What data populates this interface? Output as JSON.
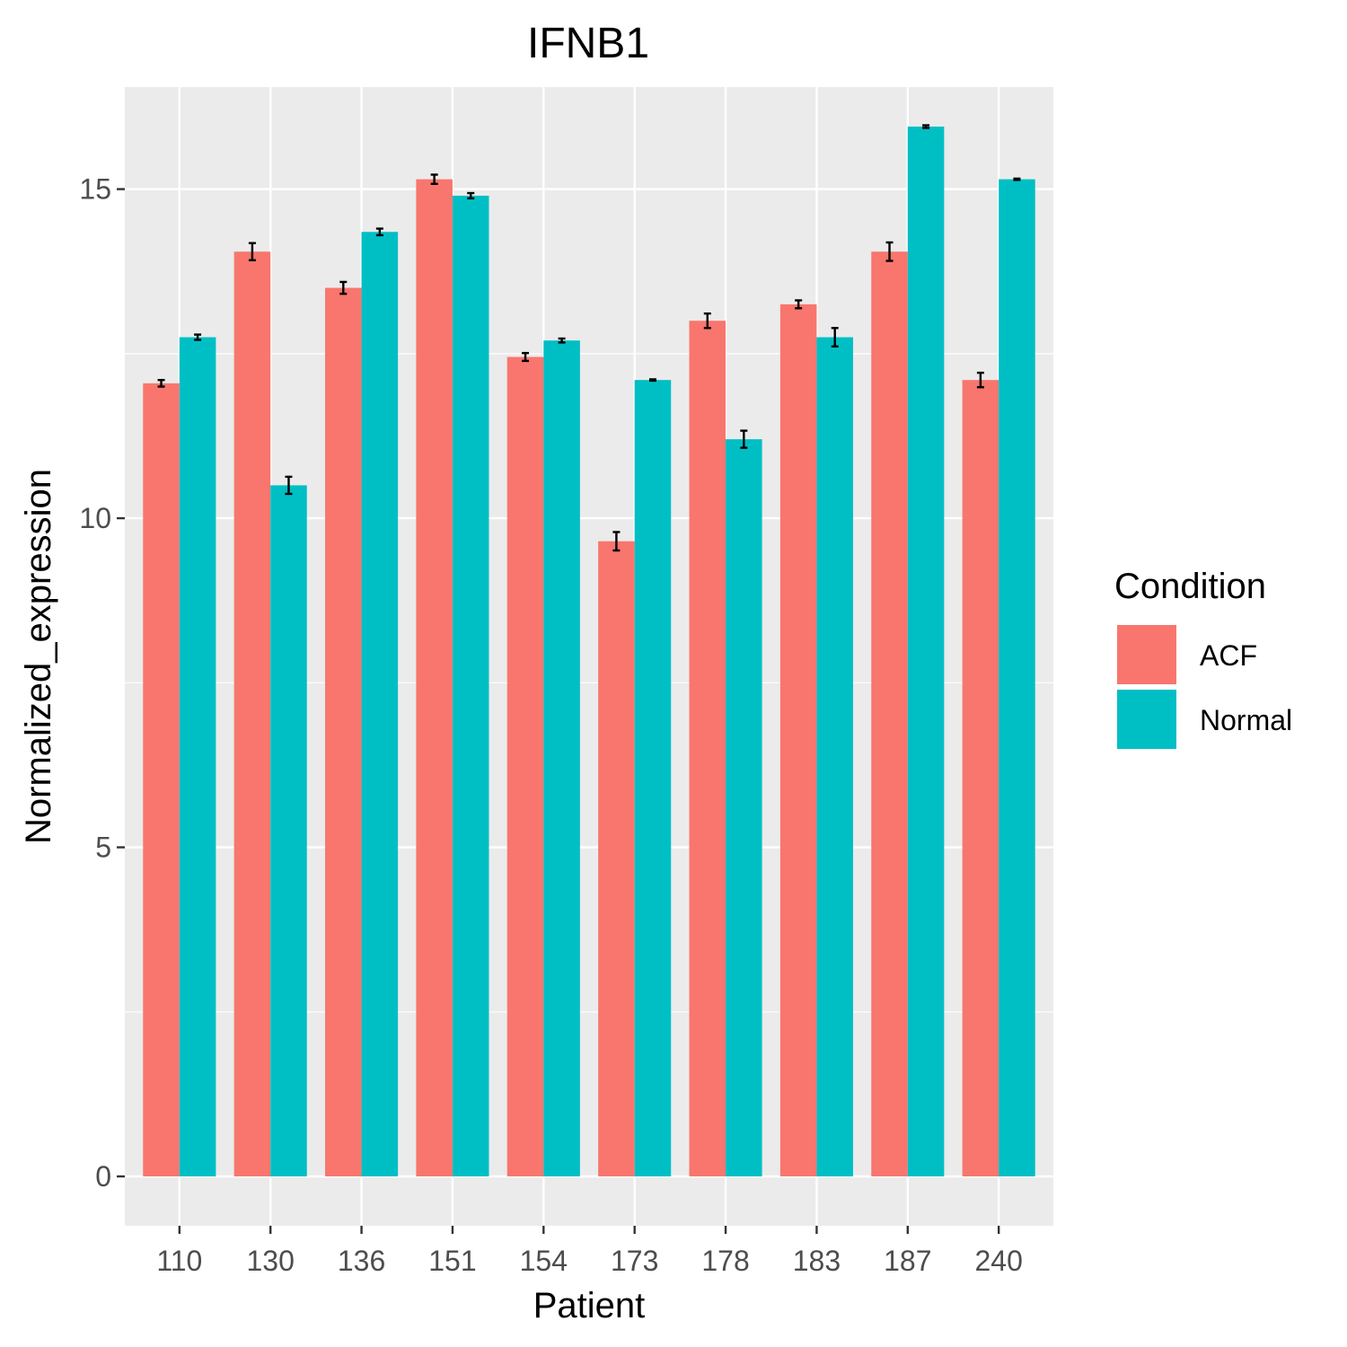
{
  "chart_data": {
    "type": "bar",
    "title": "IFNB1",
    "xlabel": "Patient",
    "ylabel": "Normalized_expression",
    "categories": [
      "110",
      "130",
      "136",
      "151",
      "154",
      "173",
      "178",
      "183",
      "187",
      "240"
    ],
    "ylim": [
      -0.75,
      16.55
    ],
    "yticks": [
      0,
      5,
      10,
      15
    ],
    "grid": true,
    "legend": {
      "title": "Condition",
      "position": "right"
    },
    "series": [
      {
        "name": "ACF",
        "color": "#F8766D",
        "values": [
          12.05,
          14.05,
          13.5,
          15.15,
          12.45,
          9.65,
          13.0,
          13.25,
          14.05,
          12.1
        ],
        "errors": [
          0.05,
          0.13,
          0.09,
          0.07,
          0.06,
          0.14,
          0.11,
          0.06,
          0.14,
          0.11
        ]
      },
      {
        "name": "Normal",
        "color": "#00BFC4",
        "values": [
          12.75,
          10.5,
          14.35,
          14.9,
          12.7,
          12.1,
          11.2,
          12.75,
          15.95,
          15.15
        ],
        "errors": [
          0.04,
          0.13,
          0.05,
          0.04,
          0.03,
          0.01,
          0.13,
          0.14,
          0.02,
          0.01
        ]
      }
    ]
  }
}
